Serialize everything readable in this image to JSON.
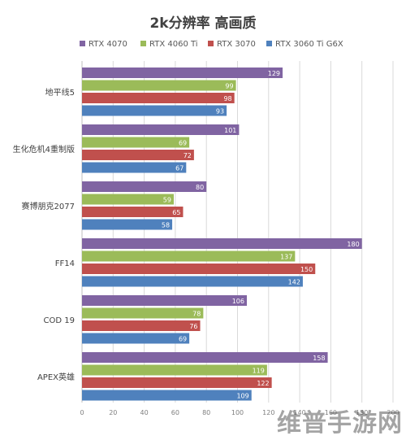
{
  "chart_data": {
    "type": "bar",
    "orientation": "horizontal",
    "title": "2k分辨率 高画质",
    "xlabel": "",
    "ylabel": "",
    "xlim": [
      0,
      200
    ],
    "x_ticks": [
      0,
      20,
      40,
      60,
      80,
      100,
      120,
      140,
      160,
      180,
      200
    ],
    "grid": true,
    "legend_position": "top",
    "categories": [
      "地平线5",
      "生化危机4重制版",
      "赛博朋克2077",
      "FF14",
      "COD 19",
      "APEX英雄"
    ],
    "series": [
      {
        "name": "RTX 4070",
        "color": "#8064a2",
        "values": [
          129,
          101,
          80,
          180,
          106,
          158
        ]
      },
      {
        "name": "RTX 4060 Ti",
        "color": "#9bbb59",
        "values": [
          99,
          69,
          59,
          137,
          78,
          119
        ]
      },
      {
        "name": "RTX 3070",
        "color": "#c0504d",
        "values": [
          98,
          72,
          65,
          150,
          76,
          122
        ]
      },
      {
        "name": "RTX 3060 Ti G6X",
        "color": "#4f81bd",
        "values": [
          93,
          67,
          58,
          142,
          69,
          109
        ]
      }
    ]
  },
  "watermark": "维普手游网"
}
